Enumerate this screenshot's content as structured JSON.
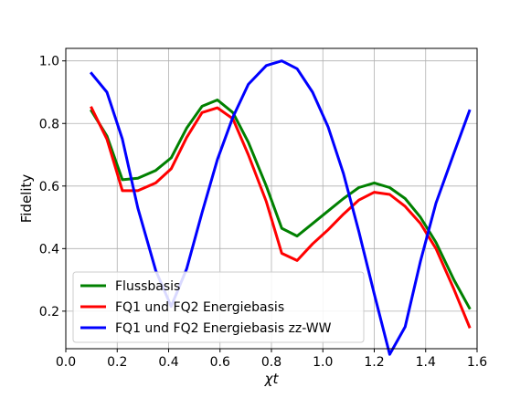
{
  "chart_data": {
    "type": "line",
    "title": "",
    "xlabel": "χt",
    "ylabel": "Fidelity",
    "xlim": [
      0.0,
      1.6
    ],
    "ylim": [
      0.08,
      1.04
    ],
    "xticks": [
      0.0,
      0.2,
      0.4,
      0.6,
      0.8,
      1.0,
      1.2,
      1.4,
      1.6
    ],
    "xtick_labels": [
      "0.0",
      "0.2",
      "0.4",
      "0.6",
      "0.8",
      "1.0",
      "1.2",
      "1.4",
      "1.6"
    ],
    "yticks": [
      0.2,
      0.4,
      0.6,
      0.8,
      1.0
    ],
    "ytick_labels": [
      "0.2",
      "0.4",
      "0.6",
      "0.8",
      "1.0"
    ],
    "grid": true,
    "legend_position": "lower-left",
    "series": [
      {
        "name": "Flussbasis",
        "color": "#008000",
        "x": [
          0.1,
          0.16,
          0.22,
          0.28,
          0.35,
          0.41,
          0.47,
          0.53,
          0.59,
          0.65,
          0.71,
          0.78,
          0.84,
          0.9,
          0.96,
          1.02,
          1.08,
          1.14,
          1.2,
          1.26,
          1.32,
          1.38,
          1.44,
          1.51,
          1.57
        ],
        "y": [
          0.84,
          0.76,
          0.62,
          0.625,
          0.65,
          0.69,
          0.785,
          0.855,
          0.875,
          0.835,
          0.74,
          0.6,
          0.465,
          0.44,
          0.48,
          0.52,
          0.56,
          0.595,
          0.61,
          0.595,
          0.56,
          0.5,
          0.42,
          0.3,
          0.21
        ]
      },
      {
        "name": "FQ1 und FQ2 Energiebasis",
        "color": "#ff0000",
        "x": [
          0.1,
          0.16,
          0.22,
          0.28,
          0.35,
          0.41,
          0.47,
          0.53,
          0.59,
          0.65,
          0.71,
          0.78,
          0.84,
          0.9,
          0.96,
          1.02,
          1.08,
          1.14,
          1.2,
          1.26,
          1.32,
          1.38,
          1.44,
          1.51,
          1.57
        ],
        "y": [
          0.85,
          0.75,
          0.585,
          0.585,
          0.61,
          0.655,
          0.755,
          0.835,
          0.85,
          0.815,
          0.7,
          0.55,
          0.385,
          0.362,
          0.415,
          0.46,
          0.51,
          0.555,
          0.58,
          0.573,
          0.535,
          0.48,
          0.4,
          0.27,
          0.15
        ]
      },
      {
        "name": "FQ1 und FQ2 Energiebasis zz-WW",
        "color": "#0000ff",
        "x": [
          0.1,
          0.16,
          0.22,
          0.28,
          0.35,
          0.41,
          0.47,
          0.53,
          0.59,
          0.65,
          0.71,
          0.78,
          0.84,
          0.9,
          0.96,
          1.02,
          1.08,
          1.14,
          1.2,
          1.26,
          1.32,
          1.38,
          1.44,
          1.51,
          1.57
        ],
        "y": [
          0.96,
          0.9,
          0.75,
          0.53,
          0.33,
          0.215,
          0.335,
          0.515,
          0.685,
          0.82,
          0.925,
          0.985,
          1.0,
          0.975,
          0.9,
          0.79,
          0.64,
          0.455,
          0.255,
          0.062,
          0.15,
          0.36,
          0.545,
          0.705,
          0.84
        ]
      }
    ]
  }
}
